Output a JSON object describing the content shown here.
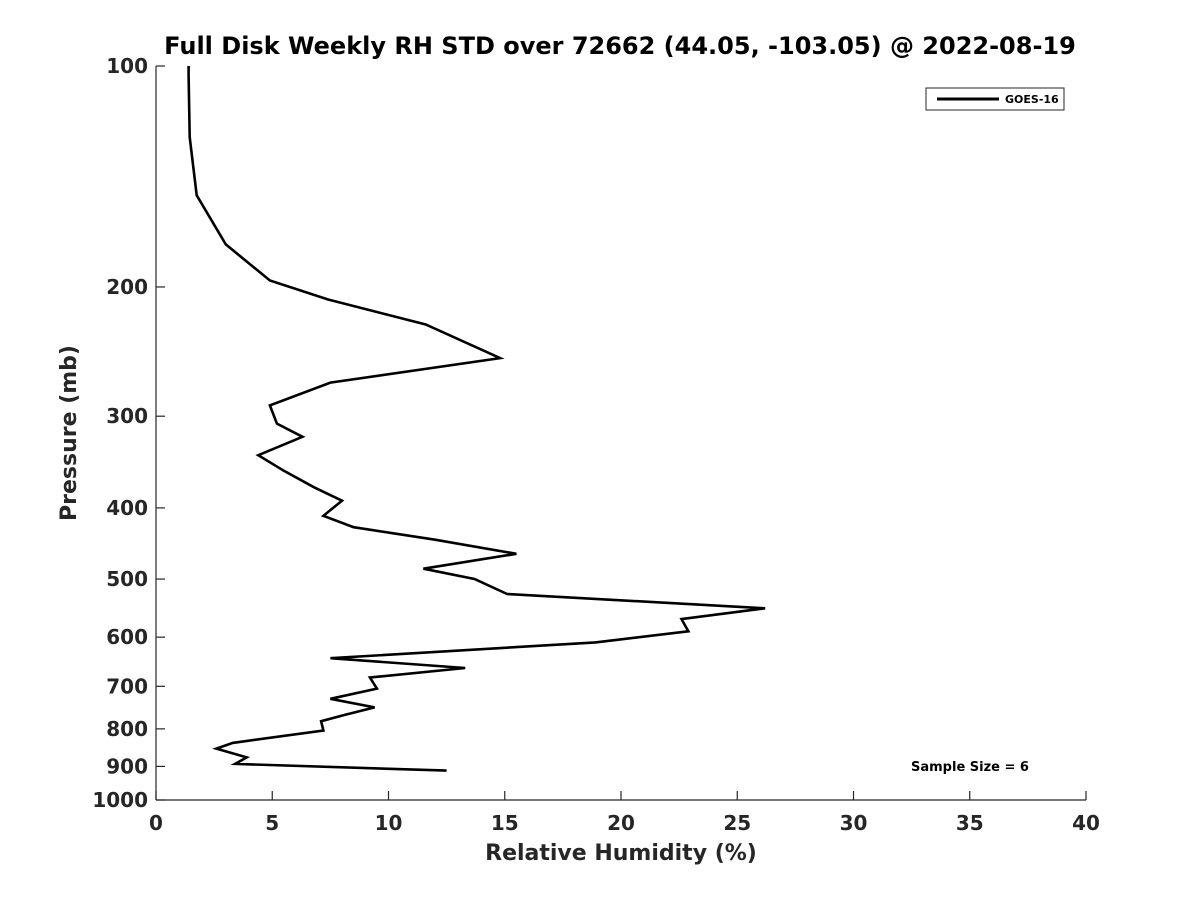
{
  "chart_data": {
    "type": "line",
    "title": "Full Disk Weekly RH STD over 72662 (44.05, -103.05) @ 2022-08-19",
    "xlabel": "Relative Humidity (%)",
    "ylabel": "Pressure (mb)",
    "xlim": [
      0,
      40
    ],
    "ylim": [
      1000,
      100
    ],
    "y_scale": "log",
    "y_reversed": true,
    "x_ticks": [
      0,
      5,
      10,
      15,
      20,
      25,
      30,
      35,
      40
    ],
    "y_ticks": [
      100,
      200,
      300,
      400,
      500,
      600,
      700,
      800,
      900,
      1000
    ],
    "grid": false,
    "legend_position": "top-right",
    "series": [
      {
        "name": "GOES-16",
        "color": "#000000",
        "points": [
          [
            1.4,
            100
          ],
          [
            1.4,
            103
          ],
          [
            1.45,
            125
          ],
          [
            1.75,
            150
          ],
          [
            3.0,
            175
          ],
          [
            4.9,
            196
          ],
          [
            7.4,
            208
          ],
          [
            11.6,
            225
          ],
          [
            14.8,
            250
          ],
          [
            7.5,
            270
          ],
          [
            4.9,
            290
          ],
          [
            5.2,
            307
          ],
          [
            6.3,
            320
          ],
          [
            4.4,
            339
          ],
          [
            5.5,
            356
          ],
          [
            6.8,
            375
          ],
          [
            8.0,
            391
          ],
          [
            7.2,
            410
          ],
          [
            8.5,
            425
          ],
          [
            12.0,
            442
          ],
          [
            15.5,
            462
          ],
          [
            11.5,
            484
          ],
          [
            13.7,
            500
          ],
          [
            15.1,
            524
          ],
          [
            26.2,
            548
          ],
          [
            22.6,
            567
          ],
          [
            22.9,
            589
          ],
          [
            18.9,
            610
          ],
          [
            7.5,
            641
          ],
          [
            13.3,
            661
          ],
          [
            9.2,
            681
          ],
          [
            9.5,
            705
          ],
          [
            7.5,
            728
          ],
          [
            9.4,
            748
          ],
          [
            8.1,
            766
          ],
          [
            7.1,
            781
          ],
          [
            7.2,
            804
          ],
          [
            3.3,
            836
          ],
          [
            2.6,
            851
          ],
          [
            3.9,
            875
          ],
          [
            3.4,
            893
          ],
          [
            12.5,
            912
          ]
        ]
      }
    ],
    "annotations": [
      "Sample Size = 6"
    ]
  }
}
